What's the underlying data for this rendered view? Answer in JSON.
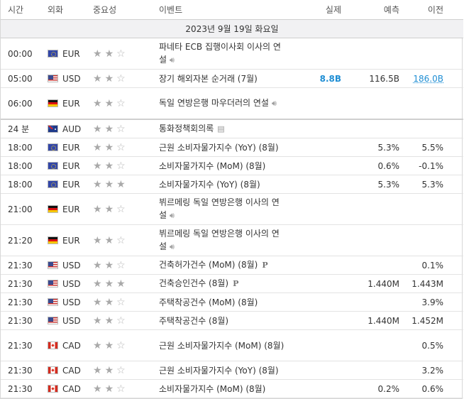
{
  "header": {
    "time": "시간",
    "currency": "외화",
    "importance": "중요성",
    "event": "이벤트",
    "actual": "실제",
    "forecast": "예측",
    "previous": "이전"
  },
  "date_label": "2023년 9월 19일 화요일",
  "icons": {
    "sound": "speaker-icon",
    "preliminary": "preliminary-p-icon",
    "document": "document-icon"
  },
  "events": [
    {
      "time": "00:00",
      "flag": "eu",
      "currency": "EUR",
      "stars": 2,
      "event": "파네타 ECB 집행이사회 이사의 연설",
      "sound": true,
      "actual": "",
      "forecast": "",
      "previous": ""
    },
    {
      "time": "05:00",
      "flag": "us",
      "currency": "USD",
      "stars": 2,
      "event": "장기 해외자본 순거래 (7월)",
      "actual": "8.8B",
      "forecast": "116.5B",
      "previous": "186.0B",
      "actual_hi": true,
      "prev_link": true
    },
    {
      "time": "06:00",
      "flag": "de",
      "currency": "EUR",
      "stars": 2,
      "event": "독일 연방은행 마우더러의 연설",
      "sound": true,
      "actual": "",
      "forecast": "",
      "previous": "",
      "group_end": true
    },
    {
      "time": "24 분",
      "flag": "au",
      "currency": "AUD",
      "stars": 2,
      "event": "통화정책회의록",
      "doc": true,
      "actual": "",
      "forecast": "",
      "previous": ""
    },
    {
      "time": "18:00",
      "flag": "eu",
      "currency": "EUR",
      "stars": 2,
      "event": "근원 소비자물가지수 (YoY) (8월)",
      "actual": "",
      "forecast": "5.3%",
      "previous": "5.5%"
    },
    {
      "time": "18:00",
      "flag": "eu",
      "currency": "EUR",
      "stars": 2,
      "event": "소비자물가지수 (MoM) (8월)",
      "actual": "",
      "forecast": "0.6%",
      "previous": "-0.1%"
    },
    {
      "time": "18:00",
      "flag": "eu",
      "currency": "EUR",
      "stars": 3,
      "event": "소비자물가지수 (YoY) (8월)",
      "actual": "",
      "forecast": "5.3%",
      "previous": "5.3%"
    },
    {
      "time": "21:00",
      "flag": "de",
      "currency": "EUR",
      "stars": 2,
      "event": "뷔르메링 독일 연방은행 이사의 연설",
      "sound": true,
      "actual": "",
      "forecast": "",
      "previous": ""
    },
    {
      "time": "21:20",
      "flag": "de",
      "currency": "EUR",
      "stars": 2,
      "event": "뷔르메링 독일 연방은행 이사의 연설",
      "sound": true,
      "actual": "",
      "forecast": "",
      "previous": ""
    },
    {
      "time": "21:30",
      "flag": "us",
      "currency": "USD",
      "stars": 2,
      "event": "건축허가건수 (MoM) (8월)",
      "prelim": true,
      "actual": "",
      "forecast": "",
      "previous": "0.1%"
    },
    {
      "time": "21:30",
      "flag": "us",
      "currency": "USD",
      "stars": 3,
      "event": "건축승인건수 (8월)",
      "prelim": true,
      "actual": "",
      "forecast": "1.440M",
      "previous": "1.443M"
    },
    {
      "time": "21:30",
      "flag": "us",
      "currency": "USD",
      "stars": 2,
      "event": "주택착공건수 (MoM) (8월)",
      "actual": "",
      "forecast": "",
      "previous": "3.9%"
    },
    {
      "time": "21:30",
      "flag": "us",
      "currency": "USD",
      "stars": 2,
      "event": "주택착공건수 (8월)",
      "actual": "",
      "forecast": "1.440M",
      "previous": "1.452M"
    },
    {
      "time": "21:30",
      "flag": "ca",
      "currency": "CAD",
      "stars": 2,
      "event": "근원 소비자물가지수 (MoM) (8월)",
      "actual": "",
      "forecast": "",
      "previous": "0.5%"
    },
    {
      "time": "21:30",
      "flag": "ca",
      "currency": "CAD",
      "stars": 2,
      "event": "근원 소비자물가지수 (YoY) (8월)",
      "actual": "",
      "forecast": "",
      "previous": "3.2%"
    },
    {
      "time": "21:30",
      "flag": "ca",
      "currency": "CAD",
      "stars": 2,
      "event": "소비자물가지수 (MoM) (8월)",
      "actual": "",
      "forecast": "0.2%",
      "previous": "0.6%"
    }
  ]
}
